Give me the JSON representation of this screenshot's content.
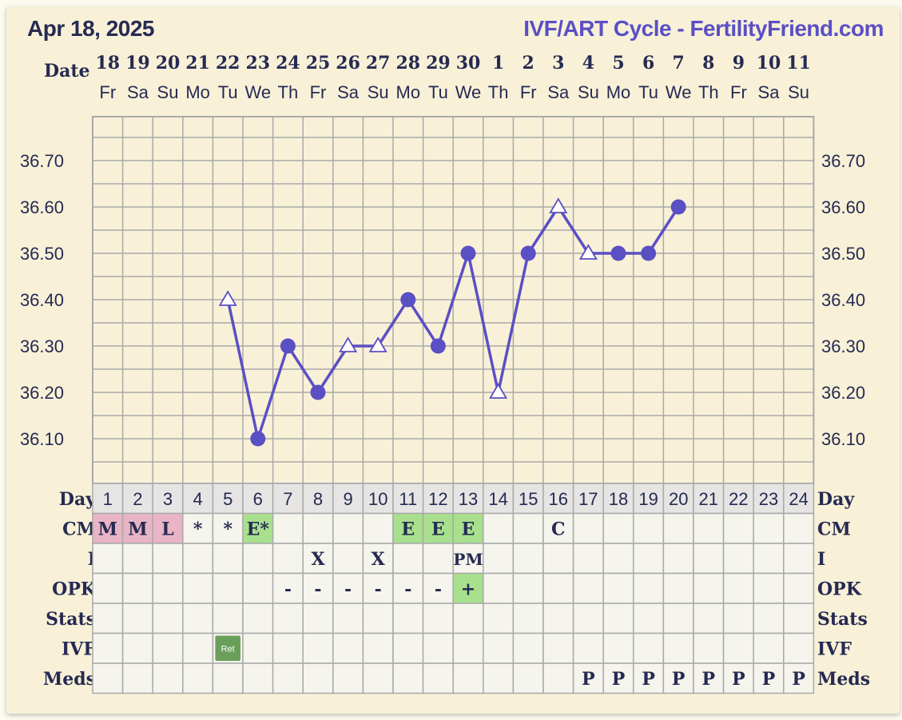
{
  "header": {
    "date": "Apr 18, 2025",
    "title": "IVF/ART Cycle - FertilityFriend.com"
  },
  "colors": {
    "line": "#5b4fc4",
    "text": "#262a52",
    "grid": "#a9a9a9",
    "panel": "#f8f1d8",
    "table_cell": "#f5f4ed",
    "day_row": "#e6e5e4",
    "cm_pink": "#e8b4c6",
    "green": "#a8e08e",
    "ivf_dark": "#6a9f5a"
  },
  "chart_data": {
    "type": "line",
    "date_label": "Date",
    "dates": [
      "18",
      "19",
      "20",
      "21",
      "22",
      "23",
      "24",
      "25",
      "26",
      "27",
      "28",
      "29",
      "30",
      "1",
      "2",
      "3",
      "4",
      "5",
      "6",
      "7",
      "8",
      "9",
      "10",
      "11"
    ],
    "weekdays": [
      "Fr",
      "Sa",
      "Su",
      "Mo",
      "Tu",
      "We",
      "Th",
      "Fr",
      "Sa",
      "Su",
      "Mo",
      "Tu",
      "We",
      "Th",
      "Fr",
      "Sa",
      "Su",
      "Mo",
      "Tu",
      "We",
      "Th",
      "Fr",
      "Sa",
      "Su"
    ],
    "cycle_days": [
      "1",
      "2",
      "3",
      "4",
      "5",
      "6",
      "7",
      "8",
      "9",
      "10",
      "11",
      "12",
      "13",
      "14",
      "15",
      "16",
      "17",
      "18",
      "19",
      "20",
      "21",
      "22",
      "23",
      "24"
    ],
    "y_ticks": [
      "36.70",
      "36.60",
      "36.50",
      "36.40",
      "36.30",
      "36.20",
      "36.10"
    ],
    "ylim": [
      36.0,
      36.8
    ],
    "grid": true,
    "series": [
      {
        "values": [
          null,
          null,
          null,
          null,
          36.4,
          36.1,
          36.3,
          36.2,
          36.3,
          36.3,
          36.4,
          36.3,
          36.5,
          36.2,
          36.5,
          36.6,
          36.5,
          36.5,
          36.5,
          36.6,
          null,
          null,
          null,
          null
        ],
        "markers": [
          "",
          "",
          "",
          "",
          "triangle",
          "circle",
          "circle",
          "circle",
          "triangle",
          "triangle",
          "circle",
          "circle",
          "circle",
          "triangle",
          "circle",
          "triangle",
          "triangle",
          "circle",
          "circle",
          "circle",
          "",
          "",
          "",
          ""
        ]
      }
    ]
  },
  "rows": [
    {
      "label": "Day",
      "key": "day"
    },
    {
      "label": "CM",
      "key": "cm"
    },
    {
      "label": "I",
      "key": "i"
    },
    {
      "label": "OPK",
      "key": "opk"
    },
    {
      "label": "Stats",
      "key": "stats"
    },
    {
      "label": "IVF",
      "key": "ivf"
    },
    {
      "label": "Meds",
      "key": "meds"
    }
  ],
  "cm": [
    "M",
    "M",
    "L",
    "*",
    "*",
    "E*",
    "",
    "",
    "",
    "",
    "E",
    "E",
    "E",
    "",
    "",
    "C",
    "",
    "",
    "",
    "",
    "",
    "",
    "",
    ""
  ],
  "cm_colors": [
    "pink",
    "pink",
    "pink",
    "",
    "",
    "green",
    "",
    "",
    "",
    "",
    "green",
    "green",
    "green",
    "",
    "",
    "",
    "",
    "",
    "",
    "",
    "",
    "",
    "",
    ""
  ],
  "intercourse": [
    "",
    "",
    "",
    "",
    "",
    "",
    "",
    "X",
    "",
    "X",
    "",
    "",
    "PM",
    "",
    "",
    "",
    "",
    "",
    "",
    "",
    "",
    "",
    "",
    ""
  ],
  "opk": [
    "",
    "",
    "",
    "",
    "",
    "",
    "-",
    "-",
    "-",
    "-",
    "-",
    "-",
    "+",
    "",
    "",
    "",
    "",
    "",
    "",
    "",
    "",
    "",
    "",
    ""
  ],
  "opk_colors": [
    "",
    "",
    "",
    "",
    "",
    "",
    "",
    "",
    "",
    "",
    "",
    "",
    "green",
    "",
    "",
    "",
    "",
    "",
    "",
    "",
    "",
    "",
    "",
    ""
  ],
  "stats": [
    "",
    "",
    "",
    "",
    "",
    "",
    "",
    "",
    "",
    "",
    "",
    "",
    "",
    "",
    "",
    "",
    "",
    "",
    "",
    "",
    "",
    "",
    "",
    ""
  ],
  "ivf": [
    "",
    "",
    "",
    "",
    "Ret",
    "",
    "",
    "",
    "",
    "",
    "",
    "",
    "",
    "",
    "",
    "",
    "",
    "",
    "",
    "",
    "",
    "",
    "",
    ""
  ],
  "meds": [
    "",
    "",
    "",
    "",
    "",
    "",
    "",
    "",
    "",
    "",
    "",
    "",
    "",
    "",
    "",
    "",
    "P",
    "P",
    "P",
    "P",
    "P",
    "P",
    "P",
    "P"
  ]
}
